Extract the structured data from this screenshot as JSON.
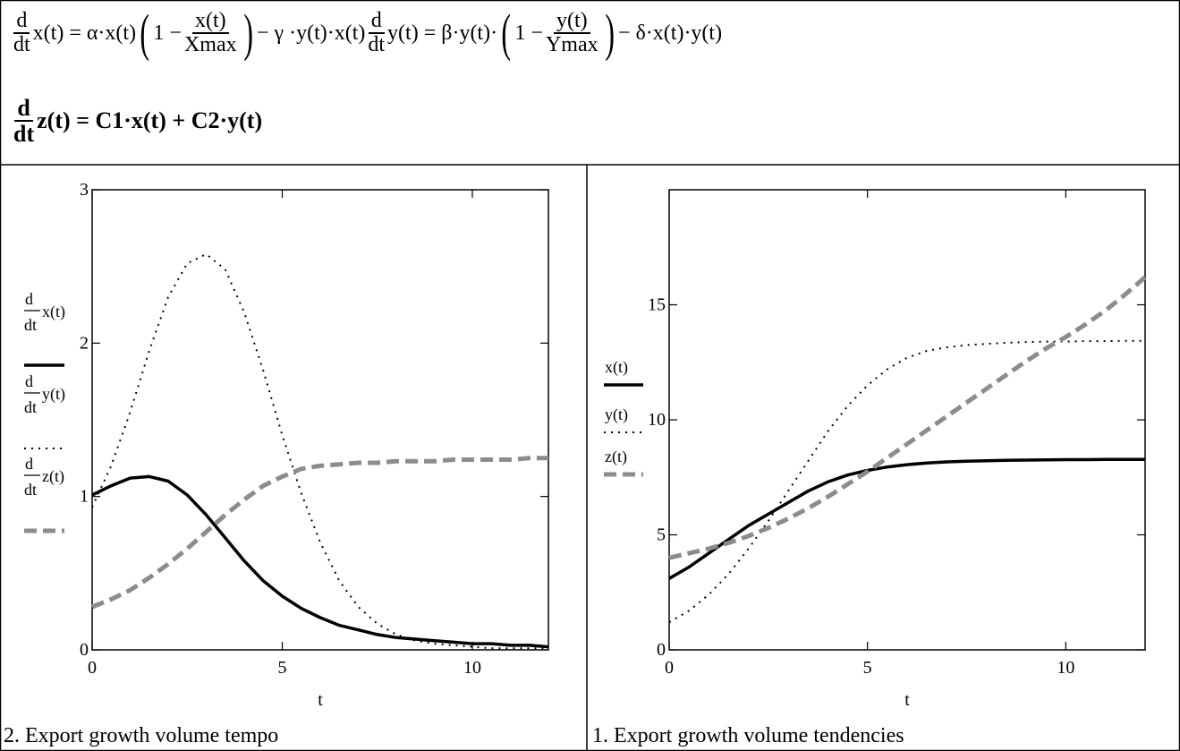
{
  "equations": {
    "eq1_dx_d": "d",
    "eq1_dx_dt": "dt",
    "eq1_dx_lhs": "x(t) = α·x(t)",
    "eq1_one": "1 −",
    "eq1_frac_num": "x(t)",
    "eq1_frac_den": "Xmax",
    "eq1_tail": "− γ ·y(t)·x(t)",
    "eq1_dy_d": "d",
    "eq1_dy_dt": "dt",
    "eq1_dy_lhs": "y(t) = β·y(t)·",
    "eq1_one_b": "1 −",
    "eq1_frac2_num": "y(t)",
    "eq1_frac2_den": "Ymax",
    "eq1_tail2": "− δ·x(t)·y(t)",
    "eq2_d": "d",
    "eq2_dt": "dt",
    "eq2_rhs": "z(t) = C1·x(t) + C2·y(t)"
  },
  "captions": {
    "left": "2. Export growth volume tempo",
    "right": "1. Export growth volume tendencies"
  },
  "colors": {
    "series_x": "#000000",
    "series_y": "#000000",
    "series_z": "#8c8c8c"
  },
  "chart_data": [
    {
      "type": "line",
      "title": "2. Export growth volume tempo",
      "xlabel": "t",
      "xlim": [
        0,
        12
      ],
      "ylim": [
        0,
        3
      ],
      "x_ticks": [
        0,
        5,
        10
      ],
      "y_ticks": [
        0,
        1,
        2,
        3
      ],
      "legend": [
        {
          "d": "d",
          "dt": "dt",
          "label": "x(t)",
          "style": "solid"
        },
        {
          "d": "d",
          "dt": "dt",
          "label": "y(t)",
          "style": "dotted"
        },
        {
          "d": "d",
          "dt": "dt",
          "label": "z(t)",
          "style": "dashed"
        }
      ],
      "series": [
        {
          "style": "solid",
          "x": [
            0,
            0.5,
            1,
            1.5,
            2,
            2.5,
            3,
            3.5,
            4,
            4.5,
            5,
            5.5,
            6,
            6.5,
            7,
            7.5,
            8,
            8.5,
            9,
            9.5,
            10,
            10.5,
            11,
            11.5,
            12
          ],
          "y": [
            1.01,
            1.07,
            1.12,
            1.13,
            1.1,
            1.01,
            0.88,
            0.73,
            0.58,
            0.45,
            0.35,
            0.27,
            0.21,
            0.16,
            0.13,
            0.1,
            0.08,
            0.07,
            0.06,
            0.05,
            0.04,
            0.04,
            0.03,
            0.03,
            0.02
          ]
        },
        {
          "style": "dotted",
          "x": [
            0,
            0.5,
            1,
            1.5,
            2,
            2.5,
            3,
            3.5,
            4,
            4.5,
            5,
            5.5,
            6,
            6.5,
            7,
            7.5,
            8,
            8.5,
            9,
            9.5,
            10,
            10.5,
            11,
            11.5,
            12
          ],
          "y": [
            0.93,
            1.2,
            1.55,
            1.95,
            2.3,
            2.52,
            2.58,
            2.48,
            2.2,
            1.82,
            1.4,
            1.02,
            0.7,
            0.45,
            0.28,
            0.17,
            0.1,
            0.06,
            0.04,
            0.03,
            0.02,
            0.01,
            0.01,
            0.01,
            0.01
          ]
        },
        {
          "style": "dashed",
          "x": [
            0,
            0.5,
            1,
            1.5,
            2,
            2.5,
            3,
            3.5,
            4,
            4.5,
            5,
            5.5,
            6,
            6.5,
            7,
            7.5,
            8,
            8.5,
            9,
            9.5,
            10,
            10.5,
            11,
            11.5,
            12
          ],
          "y": [
            0.28,
            0.33,
            0.39,
            0.47,
            0.56,
            0.66,
            0.77,
            0.88,
            0.98,
            1.07,
            1.13,
            1.18,
            1.2,
            1.21,
            1.22,
            1.22,
            1.23,
            1.23,
            1.23,
            1.24,
            1.24,
            1.24,
            1.24,
            1.25,
            1.25
          ]
        }
      ]
    },
    {
      "type": "line",
      "title": "1. Export growth volume tendencies",
      "xlabel": "t",
      "xlim": [
        0,
        12
      ],
      "ylim": [
        0,
        20
      ],
      "x_ticks": [
        0,
        5,
        10
      ],
      "y_ticks": [
        0,
        5,
        10,
        15
      ],
      "legend": [
        {
          "label": "x(t)",
          "style": "solid"
        },
        {
          "label": "y(t)",
          "style": "dotted"
        },
        {
          "label": "z(t)",
          "style": "dashed"
        }
      ],
      "series": [
        {
          "style": "solid",
          "x": [
            0,
            0.5,
            1,
            1.5,
            2,
            2.5,
            3,
            3.5,
            4,
            4.5,
            5,
            5.5,
            6,
            6.5,
            7,
            7.5,
            8,
            8.5,
            9,
            9.5,
            10,
            10.5,
            11,
            11.5,
            12
          ],
          "y": [
            3.1,
            3.6,
            4.2,
            4.8,
            5.4,
            5.9,
            6.4,
            6.9,
            7.3,
            7.6,
            7.8,
            7.95,
            8.05,
            8.12,
            8.17,
            8.2,
            8.22,
            8.24,
            8.25,
            8.26,
            8.27,
            8.27,
            8.28,
            8.28,
            8.28
          ]
        },
        {
          "style": "dotted",
          "x": [
            0,
            0.5,
            1,
            1.5,
            2,
            2.5,
            3,
            3.5,
            4,
            4.5,
            5,
            5.5,
            6,
            6.5,
            7,
            7.5,
            8,
            8.5,
            9,
            9.5,
            10,
            10.5,
            11,
            11.5,
            12
          ],
          "y": [
            1.2,
            1.7,
            2.4,
            3.3,
            4.4,
            5.6,
            6.9,
            8.2,
            9.5,
            10.6,
            11.5,
            12.2,
            12.7,
            13.0,
            13.15,
            13.25,
            13.3,
            13.35,
            13.38,
            13.4,
            13.4,
            13.42,
            13.42,
            13.43,
            13.43
          ]
        },
        {
          "style": "dashed",
          "x": [
            0,
            0.5,
            1,
            1.5,
            2,
            2.5,
            3,
            3.5,
            4,
            4.5,
            5,
            5.5,
            6,
            6.5,
            7,
            7.5,
            8,
            8.5,
            9,
            9.5,
            10,
            10.5,
            11,
            11.5,
            12
          ],
          "y": [
            4.0,
            4.2,
            4.4,
            4.65,
            4.95,
            5.3,
            5.7,
            6.15,
            6.65,
            7.2,
            7.75,
            8.35,
            8.95,
            9.55,
            10.15,
            10.75,
            11.35,
            11.95,
            12.55,
            13.1,
            13.6,
            14.15,
            14.75,
            15.45,
            16.2
          ]
        }
      ]
    }
  ]
}
